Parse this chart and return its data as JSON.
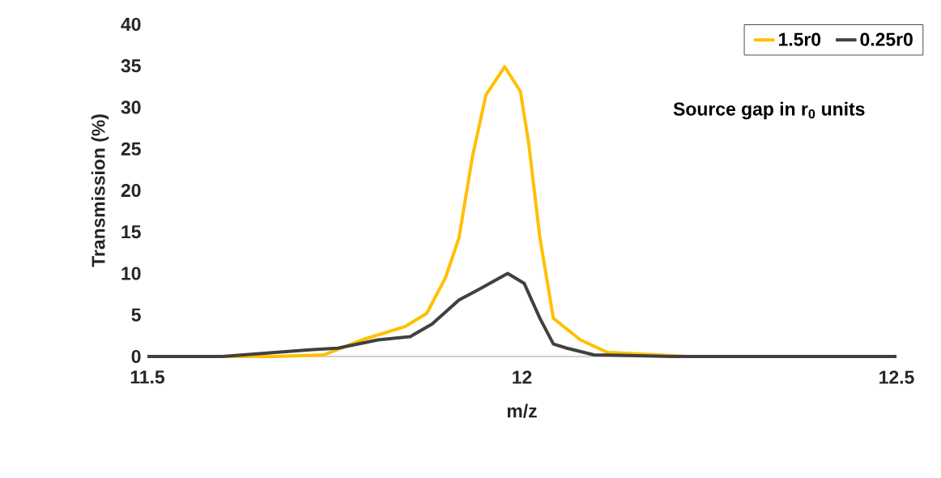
{
  "chart_data": {
    "type": "line",
    "xlabel": "m/z",
    "ylabel": "Transmission (%)",
    "legend_title": "Source gap in r$_{0}$ units",
    "legend": "top right",
    "line_style": "solid",
    "marker": "none",
    "xlim": [
      11.5,
      12.5
    ],
    "ylim": [
      0,
      40
    ],
    "xticks": [
      11.5,
      12,
      12.5
    ],
    "yticks": [
      0,
      5,
      10,
      15,
      20,
      25,
      30,
      35,
      40
    ],
    "series": [
      {
        "name": "1.5r0",
        "color": "#ffc000",
        "x": [
          11.5,
          11.671,
          11.736,
          11.79,
          11.844,
          11.873,
          11.898,
          11.916,
          11.934,
          11.952,
          11.977,
          11.998,
          12.009,
          12.024,
          12.042,
          12.078,
          12.114,
          12.222,
          12.5
        ],
        "values": [
          0,
          0,
          0.2,
          2.1,
          3.6,
          5.2,
          9.5,
          14.3,
          24.1,
          31.5,
          34.9,
          31.9,
          25.7,
          14.3,
          4.6,
          2.0,
          0.5,
          0,
          0
        ]
      },
      {
        "name": "0.25r0",
        "color": "#404040",
        "x": [
          11.5,
          11.6,
          11.717,
          11.754,
          11.808,
          11.851,
          11.88,
          11.916,
          11.941,
          11.981,
          12.003,
          12.024,
          12.042,
          12.06,
          12.096,
          12.2,
          12.5
        ],
        "values": [
          0,
          0,
          0.8,
          1.0,
          2.0,
          2.4,
          3.9,
          6.8,
          8.0,
          10.0,
          8.8,
          4.6,
          1.5,
          1.0,
          0.2,
          0,
          0
        ]
      }
    ]
  }
}
